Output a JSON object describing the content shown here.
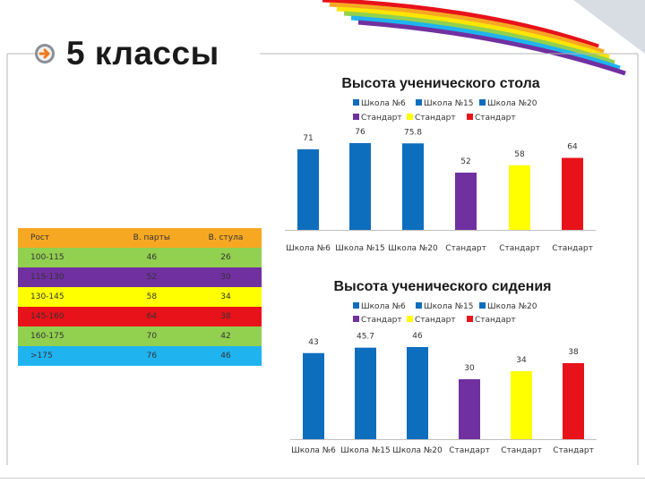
{
  "slide": {
    "title": "5 классы"
  },
  "colors": {
    "blue": "#0E6EBE",
    "violet": "#7030A0",
    "yellow": "#FFFF00",
    "red": "#E8121A",
    "orange": "#F7A823",
    "green": "#92D050",
    "cyan": "#1FB4F0"
  },
  "table": {
    "headers": [
      "Рост",
      "В. парты",
      "В. стула"
    ],
    "rows": [
      {
        "cells": [
          "100-115",
          "46",
          "26"
        ],
        "color": "#92D050"
      },
      {
        "cells": [
          "115-130",
          "52",
          "30"
        ],
        "color": "#7030A0"
      },
      {
        "cells": [
          "130-145",
          "58",
          "34"
        ],
        "color": "#FFFF00"
      },
      {
        "cells": [
          "145-160",
          "64",
          "38"
        ],
        "color": "#E8121A"
      },
      {
        "cells": [
          "160-175",
          "70",
          "42"
        ],
        "color": "#92D050"
      },
      {
        "cells": [
          ">175",
          "76",
          "46"
        ],
        "color": "#1FB4F0"
      }
    ]
  },
  "chart_data": [
    {
      "type": "bar",
      "title": "Высота ученического стола",
      "categories": [
        "Школа №6",
        "Школа №15",
        "Школа №20",
        "Стандарт",
        "Стандарт",
        "Стандарт"
      ],
      "values": [
        71,
        76,
        75.8,
        52,
        58,
        64
      ],
      "value_labels": [
        "71",
        "76",
        "75.8",
        "52",
        "58",
        "64"
      ],
      "legend": [
        "Школа №6",
        "Школа №15",
        "Школа №20",
        "Стандарт",
        "Стандарт",
        "Стандарт"
      ],
      "legend_position": "top",
      "colors": [
        "#0E6EBE",
        "#0E6EBE",
        "#0E6EBE",
        "#7030A0",
        "#FFFF00",
        "#E8121A"
      ],
      "grid": false
    },
    {
      "type": "bar",
      "title": "Высота ученического сидения",
      "categories": [
        "Школа №6",
        "Школа №15",
        "Школа №20",
        "Стандарт",
        "Стандарт",
        "Стандарт"
      ],
      "values": [
        43,
        45.7,
        46,
        30,
        34,
        38
      ],
      "value_labels": [
        "43",
        "45.7",
        "46",
        "30",
        "34",
        "38"
      ],
      "legend": [
        "Школа №6",
        "Школа №15",
        "Школа №20",
        "Стандарт",
        "Стандарт",
        "Стандарт"
      ],
      "legend_position": "top",
      "colors": [
        "#0E6EBE",
        "#0E6EBE",
        "#0E6EBE",
        "#7030A0",
        "#FFFF00",
        "#E8121A"
      ],
      "grid": false
    }
  ]
}
